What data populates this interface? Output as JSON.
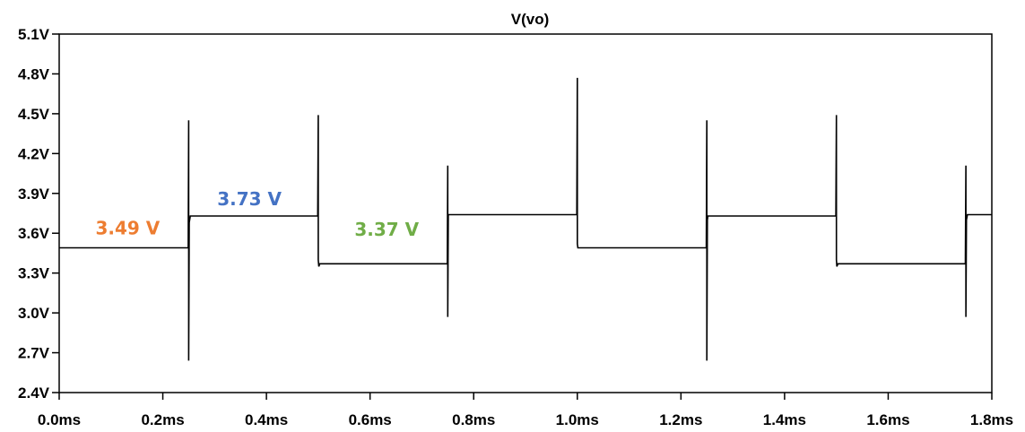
{
  "chart_data": {
    "type": "line",
    "title": "V(vo)",
    "xlabel": "",
    "ylabel": "",
    "xlim": [
      0.0,
      1.8
    ],
    "ylim": [
      2.4,
      5.1
    ],
    "grid": false,
    "x_unit": "ms",
    "y_unit": "V",
    "x_ticks": [
      0.0,
      0.2,
      0.4,
      0.6,
      0.8,
      1.0,
      1.2,
      1.4,
      1.6,
      1.8
    ],
    "x_tick_labels": [
      "0.0ms",
      "0.2ms",
      "0.4ms",
      "0.6ms",
      "0.8ms",
      "1.0ms",
      "1.2ms",
      "1.4ms",
      "1.6ms",
      "1.8ms"
    ],
    "y_ticks": [
      2.4,
      2.7,
      3.0,
      3.3,
      3.6,
      3.9,
      4.2,
      4.5,
      4.8,
      5.1
    ],
    "y_tick_labels": [
      "2.4V",
      "2.7V",
      "3.0V",
      "3.3V",
      "3.6V",
      "3.9V",
      "4.2V",
      "4.5V",
      "4.8V",
      "5.1V"
    ],
    "series": [
      {
        "name": "V(vo)",
        "color": "#000000",
        "x": [
          0.0,
          0.249,
          0.25,
          0.25,
          0.251,
          0.253,
          0.499,
          0.5,
          0.5,
          0.501,
          0.503,
          0.505,
          0.749,
          0.75,
          0.75,
          0.751,
          0.752,
          0.999,
          1.0,
          1.0,
          1.001,
          1.002,
          1.249,
          1.25,
          1.25,
          1.251,
          1.252,
          1.499,
          1.5,
          1.5,
          1.501,
          1.503,
          1.749,
          1.75,
          1.75,
          1.751,
          1.753,
          1.8
        ],
        "y": [
          3.49,
          3.49,
          4.45,
          2.64,
          3.68,
          3.73,
          3.73,
          4.49,
          3.4,
          3.35,
          3.37,
          3.37,
          3.37,
          4.11,
          2.97,
          3.74,
          3.74,
          3.74,
          4.77,
          3.52,
          3.49,
          3.49,
          3.49,
          4.45,
          2.64,
          3.7,
          3.73,
          3.73,
          4.49,
          3.4,
          3.35,
          3.37,
          3.37,
          4.11,
          2.97,
          3.7,
          3.74,
          3.74
        ]
      }
    ],
    "annotations": [
      {
        "text": "3.49 V",
        "x": 0.07,
        "y": 3.59,
        "color": "#ED7D31"
      },
      {
        "text": "3.73 V",
        "x": 0.305,
        "y": 3.81,
        "color": "#4472C4"
      },
      {
        "text": "3.37 V",
        "x": 0.57,
        "y": 3.58,
        "color": "#70AD47"
      }
    ]
  }
}
